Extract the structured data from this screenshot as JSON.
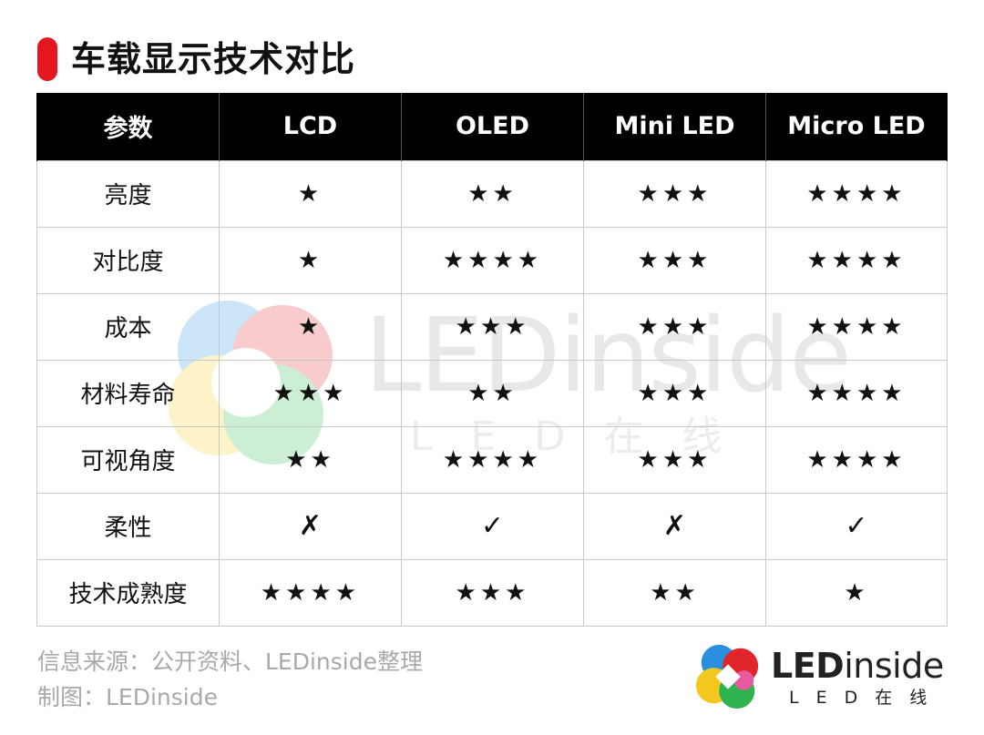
{
  "title": "车载显示技术对比",
  "table": {
    "headers": [
      "参数",
      "LCD",
      "OLED",
      "Mini LED",
      "Micro LED"
    ],
    "rows": [
      [
        "亮度",
        "★",
        "★★",
        "★★★",
        "★★★★"
      ],
      [
        "对比度",
        "★",
        "★★★★",
        "★★★",
        "★★★★"
      ],
      [
        "成本",
        "★",
        "★★★",
        "★★★",
        "★★★★"
      ],
      [
        "材料寿命",
        "★★★",
        "★★",
        "★★★",
        "★★★★"
      ],
      [
        "可视角度",
        "★★",
        "★★★★",
        "★★★",
        "★★★★"
      ],
      [
        "柔性",
        "✗",
        "✓",
        "✗",
        "✓"
      ],
      [
        "技术成熟度",
        "★★★★",
        "★★★",
        "★★",
        "★"
      ]
    ]
  },
  "footer": {
    "source": "信息来源：公开资料、LEDinside整理",
    "credit": "制图：LEDinside"
  },
  "watermark": {
    "main": "LEDinside",
    "sub": "LED在线"
  },
  "logo": {
    "word_bold": "LED",
    "word_rest": "inside",
    "sub": "LED在线"
  },
  "colors": {
    "accent": "#e4161f",
    "header_bg": "#000000",
    "footer_text": "#a9a9a9"
  },
  "icons": [
    "star-rating-icon",
    "cross-icon",
    "check-icon",
    "ledinside-logo-icon"
  ]
}
